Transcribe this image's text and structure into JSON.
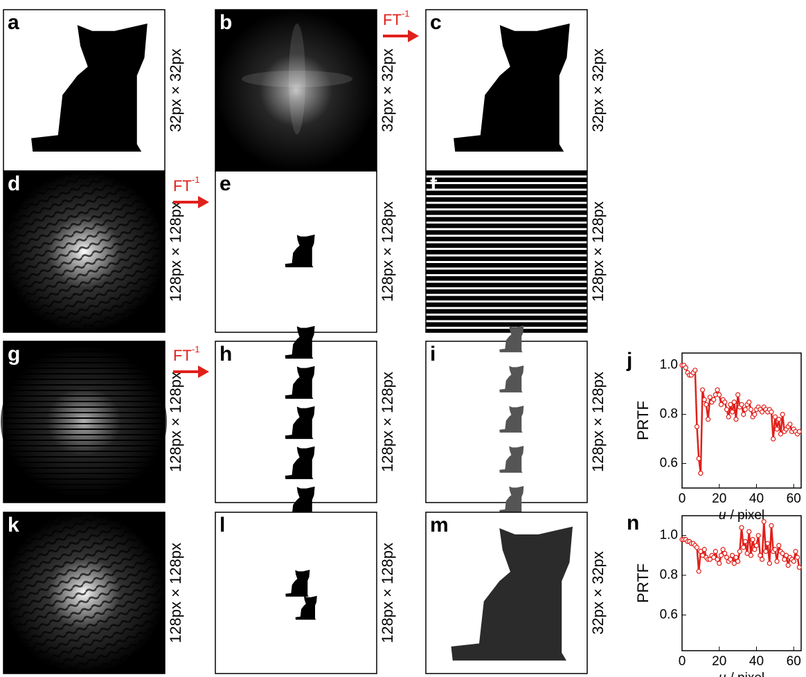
{
  "panels": [
    {
      "letter": "a",
      "size_label": "32px × 32px"
    },
    {
      "letter": "b",
      "size_label": "32px × 32px"
    },
    {
      "letter": "c",
      "size_label": "32px × 32px"
    },
    {
      "letter": "d",
      "size_label": "128px × 128px"
    },
    {
      "letter": "e",
      "size_label": "128px × 128px"
    },
    {
      "letter": "f",
      "size_label": "128px × 128px"
    },
    {
      "letter": "g",
      "size_label": "128px × 128px"
    },
    {
      "letter": "h",
      "size_label": "128px × 128px"
    },
    {
      "letter": "i",
      "size_label": "128px × 128px"
    },
    {
      "letter": "k",
      "size_label": "128px × 128px"
    },
    {
      "letter": "l",
      "size_label": "128px × 128px"
    },
    {
      "letter": "m",
      "size_label": "32px × 32px"
    }
  ],
  "arrows": [
    {
      "text": "FT",
      "sup": "-1"
    },
    {
      "text": "FT",
      "sup": "-1"
    },
    {
      "text": "FT",
      "sup": "-1"
    }
  ],
  "chart_data": [
    {
      "type": "line",
      "panel_label": "j",
      "y_label": "PRTF",
      "x_label": {
        "var": "u",
        "rest": "/ pixel"
      },
      "x": [
        0,
        1,
        2,
        3,
        4,
        5,
        6,
        7,
        8,
        9,
        10,
        11,
        12,
        13,
        14,
        15,
        16,
        17,
        18,
        19,
        20,
        21,
        22,
        23,
        24,
        25,
        26,
        27,
        28,
        29,
        30,
        31,
        32,
        33,
        34,
        35,
        36,
        37,
        38,
        39,
        40,
        41,
        42,
        43,
        44,
        45,
        46,
        47,
        48,
        49,
        50,
        51,
        52,
        53,
        54,
        55,
        56,
        57,
        58,
        59,
        60,
        61,
        62,
        63
      ],
      "series": [
        {
          "color": "#e0201b",
          "values": [
            1.0,
            1.0,
            0.99,
            0.97,
            0.96,
            0.96,
            0.97,
            0.98,
            0.75,
            0.62,
            0.56,
            0.9,
            0.86,
            0.84,
            0.78,
            0.87,
            0.85,
            0.86,
            0.88,
            0.9,
            0.88,
            0.84,
            0.86,
            0.85,
            0.82,
            0.79,
            0.84,
            0.81,
            0.85,
            0.78,
            0.88,
            0.83,
            0.84,
            0.8,
            0.82,
            0.84,
            0.85,
            0.82,
            0.79,
            0.8,
            0.82,
            0.83,
            0.82,
            0.81,
            0.83,
            0.82,
            0.81,
            0.82,
            0.81,
            0.7,
            0.79,
            0.74,
            0.78,
            0.72,
            0.8,
            0.73,
            0.74,
            0.75,
            0.76,
            0.73,
            0.74,
            0.73,
            0.72,
            0.73
          ]
        }
      ],
      "xlim": [
        0,
        64
      ],
      "xticks": [
        0,
        20,
        40,
        60
      ],
      "ylim": [
        0.5,
        1.05
      ],
      "yticks": [
        0.6,
        0.8,
        {
          "value": 1,
          "label": "1.0"
        }
      ]
    },
    {
      "type": "line",
      "panel_label": "n",
      "y_label": "PRTF",
      "x_label": {
        "var": "u",
        "rest": "/ pixel"
      },
      "x": [
        0,
        1,
        2,
        3,
        4,
        5,
        6,
        7,
        8,
        9,
        10,
        11,
        12,
        13,
        14,
        15,
        16,
        17,
        18,
        19,
        20,
        21,
        22,
        23,
        24,
        25,
        26,
        27,
        28,
        29,
        30,
        31,
        32,
        33,
        34,
        35,
        36,
        37,
        38,
        39,
        40,
        41,
        42,
        43,
        44,
        45,
        46,
        47,
        48,
        49,
        50,
        51,
        52,
        53,
        54,
        55,
        56,
        57,
        58,
        59,
        60,
        61,
        62,
        63
      ],
      "series": [
        {
          "color": "#e0201b",
          "values": [
            0.98,
            0.98,
            0.98,
            0.97,
            0.97,
            0.96,
            0.96,
            0.95,
            0.94,
            0.82,
            0.92,
            0.9,
            0.93,
            0.89,
            0.88,
            0.88,
            0.9,
            0.89,
            0.92,
            0.88,
            0.86,
            0.9,
            0.93,
            0.91,
            0.89,
            0.87,
            0.88,
            0.9,
            0.86,
            0.89,
            0.87,
            0.92,
            1.04,
            0.94,
            0.97,
            0.91,
            1.02,
            0.9,
            0.98,
            0.93,
            0.95,
            1.0,
            0.9,
            0.88,
            1.07,
            0.92,
            0.96,
            0.86,
            1.05,
            0.92,
            0.93,
            0.87,
            0.95,
            0.92,
            0.91,
            0.88,
            0.9,
            0.85,
            0.89,
            0.88,
            0.87,
            0.92,
            0.89,
            0.84
          ]
        }
      ],
      "xlim": [
        0,
        64
      ],
      "xticks": [
        0,
        20,
        40,
        60
      ],
      "ylim": [
        0.42,
        1.1
      ],
      "yticks": [
        0.6,
        0.8,
        {
          "value": 1,
          "label": "1.0"
        }
      ]
    }
  ]
}
